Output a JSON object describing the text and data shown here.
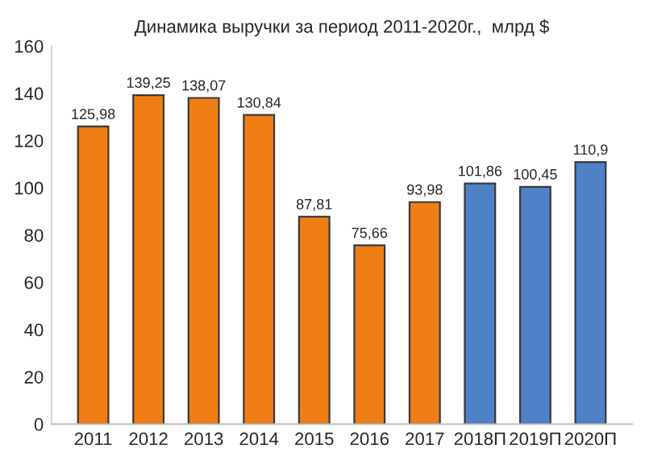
{
  "chart_data": {
    "type": "bar",
    "title": "Динамика выручки за период 2011-2020г.,  млрд $",
    "categories": [
      "2011",
      "2012",
      "2013",
      "2014",
      "2015",
      "2016",
      "2017",
      "2018П",
      "2019П",
      "2020П"
    ],
    "values": [
      125.98,
      139.25,
      138.07,
      130.84,
      87.81,
      75.66,
      93.98,
      101.86,
      100.45,
      110.9
    ],
    "value_labels": [
      "125,98",
      "139,25",
      "138,07",
      "130,84",
      "87,81",
      "75,66",
      "93,98",
      "101,86",
      "100,45",
      "110,9"
    ],
    "colors": [
      "#f07d14",
      "#f07d14",
      "#f07d14",
      "#f07d14",
      "#f07d14",
      "#f07d14",
      "#f07d14",
      "#4f81c8",
      "#4f81c8",
      "#4f81c8"
    ],
    "ylim": [
      0,
      160
    ],
    "yticks": [
      0,
      20,
      40,
      60,
      80,
      100,
      120,
      140,
      160
    ],
    "grid": false
  }
}
